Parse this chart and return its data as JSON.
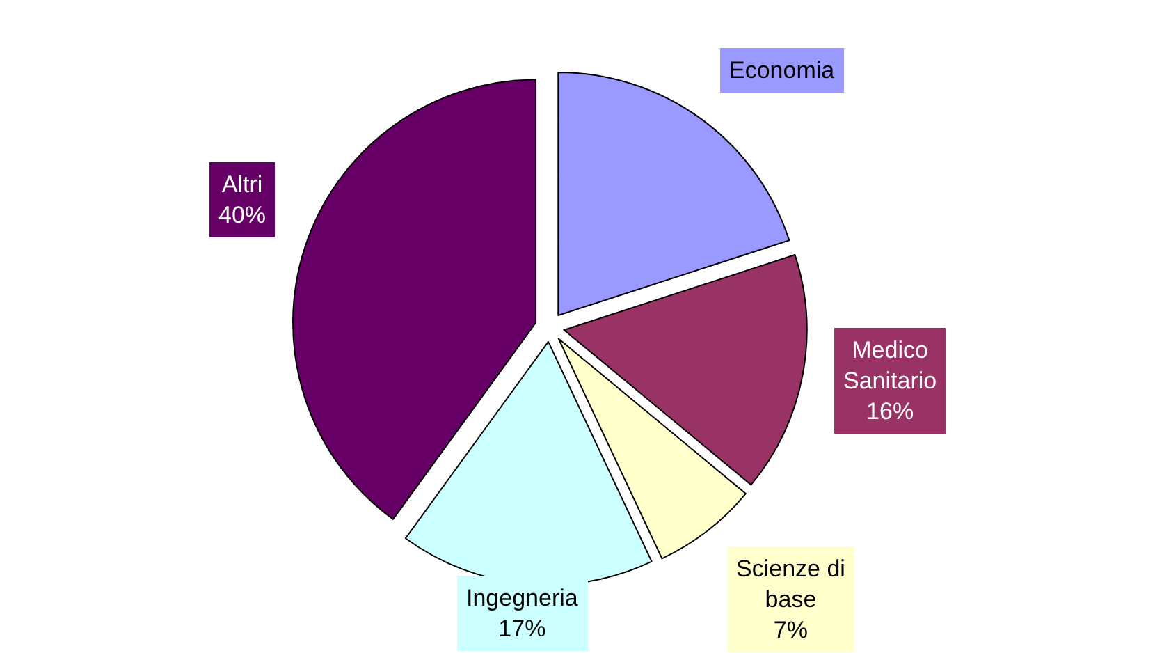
{
  "chart_data": {
    "type": "pie",
    "categories": [
      "Economia",
      "Medico Sanitario",
      "Scienze di base",
      "Ingegneria",
      "Altri"
    ],
    "values": [
      20,
      16,
      7,
      17,
      40
    ],
    "value_labels": [
      null,
      "16%",
      "7%",
      "17%",
      "40%"
    ],
    "colors": [
      "#9999ff",
      "#993366",
      "#ffffcc",
      "#ccffff",
      "#660066"
    ],
    "legend": false
  }
}
